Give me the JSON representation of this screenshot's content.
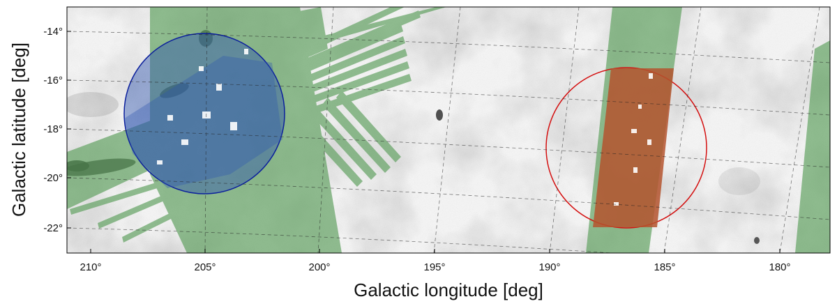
{
  "chart_data": {
    "type": "scatter",
    "title": "",
    "xlabel": "Galactic longitude [deg]",
    "ylabel": "Galactic latitude [deg]",
    "xlim": [
      211.0,
      178.0
    ],
    "ylim": [
      -23.0,
      -13.0
    ],
    "xticks": [
      210,
      205,
      200,
      195,
      190,
      185,
      180
    ],
    "yticks": [
      -14,
      -16,
      -18,
      -20,
      -22
    ],
    "xtick_labels": [
      "210°",
      "205°",
      "200°",
      "195°",
      "190°",
      "185°",
      "180°"
    ],
    "ytick_labels": [
      "-14°",
      "-16°",
      "-18°",
      "-20°",
      "-22°"
    ],
    "grid": true,
    "background": "greyscale dust-extinction map",
    "survey_footprint_color": "#5fa05f",
    "fields": [
      {
        "center_l": 205.0,
        "center_b": -17.3,
        "radius_deg": 3.5,
        "edge_color": "#0b1f9c",
        "fill_color": "#2f55b0"
      },
      {
        "center_l": 186.5,
        "center_b": -18.8,
        "radius_deg": 3.5,
        "edge_color": "#d41010",
        "fill_color": "#b4542e"
      }
    ]
  }
}
